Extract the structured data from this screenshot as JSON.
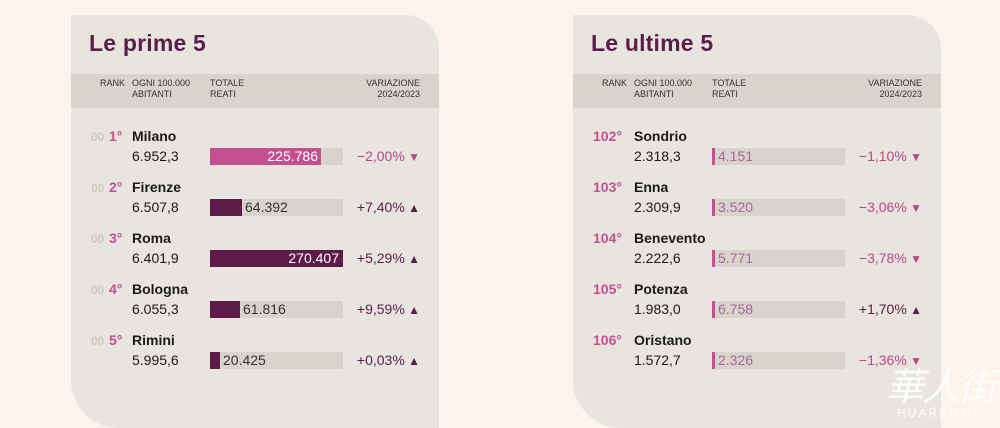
{
  "chart_data": [
    {
      "type": "table",
      "title": "Le prime 5",
      "columns": {
        "rank": "RANK",
        "per_capita": [
          "OGNI 100.000",
          "ABITANTI"
        ],
        "total": [
          "TOTALE",
          "REATI"
        ],
        "variation": [
          "VARIAZIONE",
          "2024/2023"
        ]
      },
      "bar_max": 270407,
      "rows": [
        {
          "ghost": "00",
          "rank": "1°",
          "city": "Milano",
          "per_capita": "6.952,3",
          "total": "225.786",
          "total_value": 225786,
          "variation": "−2,00%",
          "dir": "down"
        },
        {
          "ghost": "00",
          "rank": "2°",
          "city": "Firenze",
          "per_capita": "6.507,8",
          "total": "64.392",
          "total_value": 64392,
          "variation": "+7,40%",
          "dir": "up"
        },
        {
          "ghost": "00",
          "rank": "3°",
          "city": "Roma",
          "per_capita": "6.401,9",
          "total": "270.407",
          "total_value": 270407,
          "variation": "+5,29%",
          "dir": "up"
        },
        {
          "ghost": "00",
          "rank": "4°",
          "city": "Bologna",
          "per_capita": "6.055,3",
          "total": "61.816",
          "total_value": 61816,
          "variation": "+9,59%",
          "dir": "up"
        },
        {
          "ghost": "00",
          "rank": "5°",
          "city": "Rimini",
          "per_capita": "5.995,6",
          "total": "20.425",
          "total_value": 20425,
          "variation": "+0,03%",
          "dir": "up"
        }
      ]
    },
    {
      "type": "table",
      "title": "Le ultime 5",
      "columns": {
        "rank": "RANK",
        "per_capita": [
          "OGNI 100.000",
          "ABITANTI"
        ],
        "total": [
          "TOTALE",
          "REATI"
        ],
        "variation": [
          "VARIAZIONE",
          "2024/2023"
        ]
      },
      "bar_max": 270407,
      "rows": [
        {
          "rank": "102°",
          "city": "Sondrio",
          "per_capita": "2.318,3",
          "total": "4.151",
          "total_value": 4151,
          "variation": "−1,10%",
          "dir": "down"
        },
        {
          "rank": "103°",
          "city": "Enna",
          "per_capita": "2.309,9",
          "total": "3.520",
          "total_value": 3520,
          "variation": "−3,06%",
          "dir": "down"
        },
        {
          "rank": "104°",
          "city": "Benevento",
          "per_capita": "2.222,6",
          "total": "5.771",
          "total_value": 5771,
          "variation": "−3,78%",
          "dir": "down"
        },
        {
          "rank": "105°",
          "city": "Potenza",
          "per_capita": "1.983,0",
          "total": "6.758",
          "total_value": 6758,
          "variation": "+1,70%",
          "dir": "up"
        },
        {
          "rank": "106°",
          "city": "Oristano",
          "per_capita": "1.572,7",
          "total": "2.326",
          "total_value": 2326,
          "variation": "−1,36%",
          "dir": "down"
        }
      ]
    }
  ],
  "colors": {
    "title": "#5a1e48",
    "rank": "#c4508f",
    "bar_highlight": "#c4508f",
    "bar_dark": "#5e1b47",
    "decrease": "#b94787",
    "increase": "#5a1e48"
  },
  "watermark": {
    "logo": "華人街",
    "text": "HUARENJIE"
  }
}
